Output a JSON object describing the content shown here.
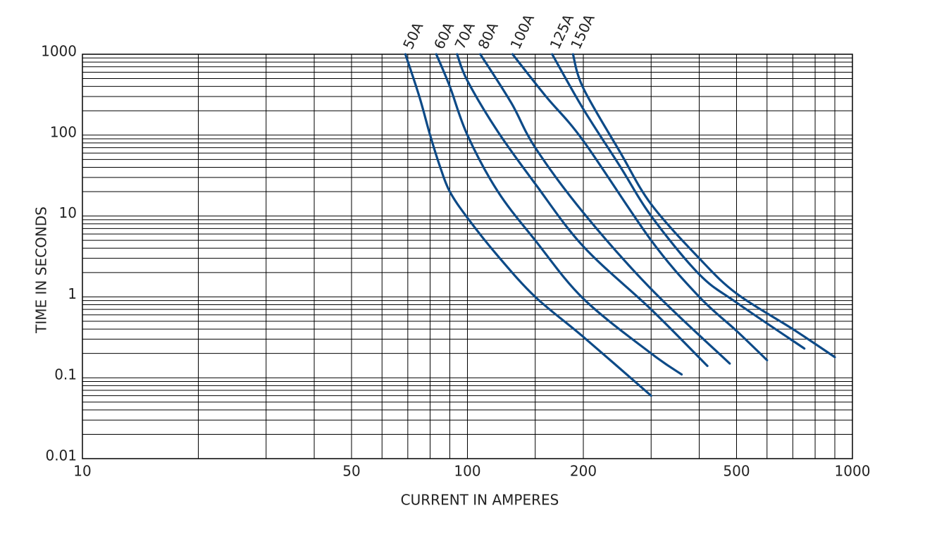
{
  "chart_data": {
    "type": "line",
    "xlabel": "CURRENT IN AMPERES",
    "ylabel": "TIME IN SECONDS",
    "log_x": true,
    "log_y": true,
    "xlim": [
      10,
      1000
    ],
    "ylim": [
      0.01,
      1000
    ],
    "xticks": [
      10,
      50,
      100,
      200,
      500,
      1000
    ],
    "yticks": [
      0.01,
      0.1,
      1,
      10,
      100,
      1000
    ],
    "xgrid": [
      10,
      20,
      30,
      40,
      50,
      60,
      70,
      80,
      90,
      100,
      150,
      200,
      300,
      400,
      500,
      600,
      700,
      800,
      900,
      1000
    ],
    "ygrid": [
      0.01,
      0.02,
      0.03,
      0.04,
      0.05,
      0.06,
      0.07,
      0.08,
      0.09,
      0.1,
      0.2,
      0.3,
      0.4,
      0.5,
      0.6,
      0.7,
      0.8,
      0.9,
      1,
      2,
      3,
      4,
      5,
      6,
      7,
      8,
      9,
      10,
      20,
      30,
      40,
      50,
      60,
      70,
      80,
      90,
      100,
      200,
      300,
      400,
      500,
      600,
      700,
      800,
      900,
      1000
    ],
    "grid": true,
    "series": [
      {
        "name": "50A",
        "color": "#0d4a87",
        "x": [
          69,
          75,
          80,
          85,
          90,
          100,
          120,
          150,
          200,
          300
        ],
        "values": [
          1000,
          300,
          100,
          40,
          20,
          9.5,
          3.2,
          1,
          0.32,
          0.06
        ]
      },
      {
        "name": "60A",
        "color": "#0d4a87",
        "x": [
          83,
          90,
          100,
          120,
          150,
          200,
          300,
          360
        ],
        "values": [
          1000,
          400,
          100,
          20,
          5,
          0.95,
          0.2,
          0.11
        ]
      },
      {
        "name": "70A",
        "color": "#0d4a87",
        "x": [
          94,
          100,
          120,
          150,
          200,
          300,
          420
        ],
        "values": [
          1000,
          470,
          110,
          25,
          4.2,
          0.7,
          0.14
        ]
      },
      {
        "name": "80A",
        "color": "#0d4a87",
        "x": [
          108,
          130,
          150,
          200,
          300,
          480
        ],
        "values": [
          1000,
          250,
          70,
          11,
          1.25,
          0.15
        ]
      },
      {
        "name": "100A",
        "color": "#0d4a87",
        "x": [
          131,
          160,
          200,
          300,
          400,
          500,
          600
        ],
        "values": [
          1000,
          300,
          85,
          5,
          1,
          0.38,
          0.165
        ]
      },
      {
        "name": "125A",
        "color": "#0d4a87",
        "x": [
          166,
          200,
          250,
          300,
          400,
          500,
          750
        ],
        "values": [
          1000,
          210,
          40,
          10,
          1.9,
          0.85,
          0.23
        ]
      },
      {
        "name": "150A",
        "color": "#0d4a87",
        "x": [
          188,
          200,
          250,
          300,
          400,
          500,
          700,
          900
        ],
        "values": [
          1000,
          380,
          60,
          14,
          3,
          1.1,
          0.4,
          0.18
        ]
      }
    ]
  }
}
